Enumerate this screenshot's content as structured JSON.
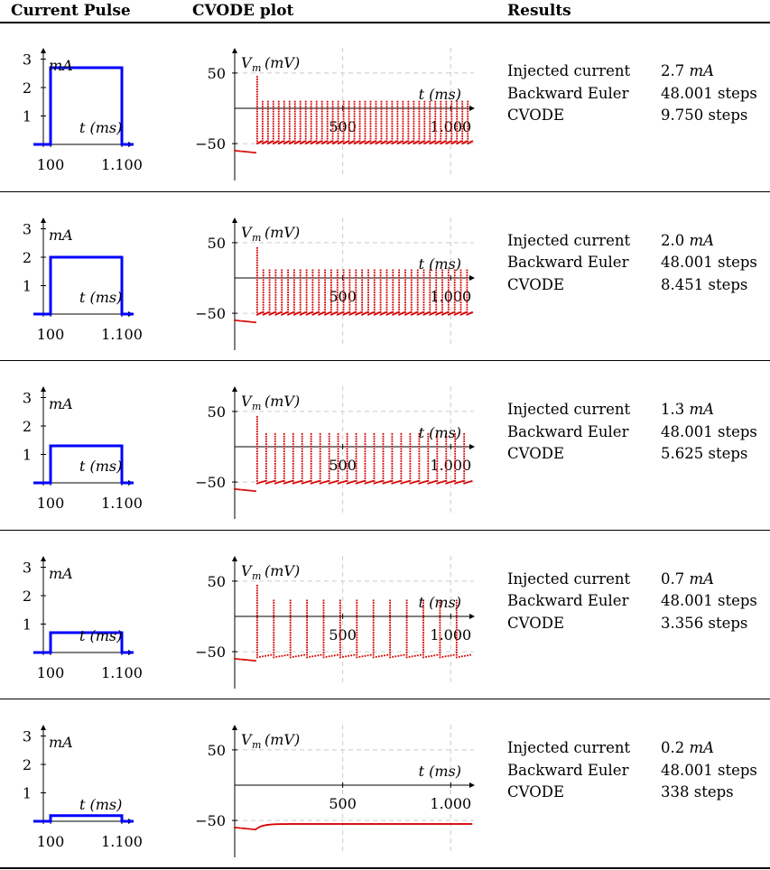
{
  "headers": {
    "pulse": "Current Pulse",
    "plot": "CVODE plot",
    "results": "Results"
  },
  "pulse_axes": {
    "ylabel": "mA",
    "xlabel": "t (ms)",
    "yticks": [
      "1",
      "2",
      "3"
    ],
    "xticks": [
      "100",
      "1.100"
    ]
  },
  "plot_axes": {
    "ylabel": "V",
    "ylabel_sub": "m",
    "ylabel_unit": "(mV)",
    "xlabel": "t (ms)",
    "yticks": [
      "50",
      "−50"
    ],
    "xticks": [
      "500",
      "1.000"
    ]
  },
  "colors": {
    "pulse": "#0000ff",
    "trace": "#d40000",
    "grid": "#cccccc"
  },
  "labels": {
    "injected": "Injected current",
    "backward": "Backward Euler",
    "cvode": "CVODE"
  },
  "rows": [
    {
      "current_value": "2.7",
      "current_unit": "mA",
      "backward_euler": "48.001 steps",
      "cvode": "9.750 steps",
      "chart_data": {
        "type": "line",
        "pulse_amplitude": 2.7,
        "pulse_x": [
          100,
          1100
        ],
        "spike_count": 40,
        "rest_mv": -60,
        "spike_peak_mv": 10,
        "trough_mv": -50
      }
    },
    {
      "current_value": "2.0",
      "current_unit": "mA",
      "backward_euler": "48.001 steps",
      "cvode": "8.451 steps",
      "chart_data": {
        "type": "line",
        "pulse_amplitude": 2.0,
        "pulse_x": [
          100,
          1100
        ],
        "spike_count": 35,
        "rest_mv": -60,
        "spike_peak_mv": 12,
        "trough_mv": -52
      }
    },
    {
      "current_value": "1.3",
      "current_unit": "mA",
      "backward_euler": "48.001 steps",
      "cvode": "5.625 steps",
      "chart_data": {
        "type": "line",
        "pulse_amplitude": 1.3,
        "pulse_x": [
          100,
          1100
        ],
        "spike_count": 24,
        "rest_mv": -60,
        "spike_peak_mv": 20,
        "trough_mv": -52
      }
    },
    {
      "current_value": "0.7",
      "current_unit": "mA",
      "backward_euler": "48.001 steps",
      "cvode": "3.356 steps",
      "chart_data": {
        "type": "line",
        "pulse_amplitude": 0.7,
        "pulse_x": [
          100,
          1100
        ],
        "spike_count": 13,
        "rest_mv": -60,
        "spike_peak_mv": 25,
        "trough_mv": -58
      }
    },
    {
      "current_value": "0.2",
      "current_unit": "mA",
      "backward_euler": "48.001 steps",
      "cvode": "338 steps",
      "chart_data": {
        "type": "line",
        "pulse_amplitude": 0.2,
        "pulse_x": [
          100,
          1100
        ],
        "spike_count": 0,
        "rest_mv": -60,
        "spike_peak_mv": -55,
        "trough_mv": -55
      }
    }
  ]
}
